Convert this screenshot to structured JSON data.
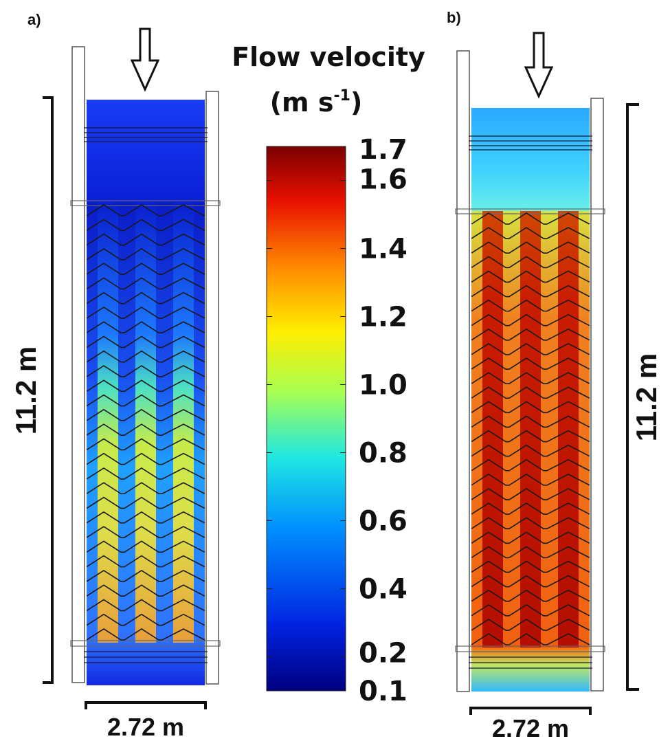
{
  "panels": [
    {
      "id": "a",
      "label": "a)",
      "height_label": "11.2 m",
      "width_label": "2.72 m",
      "upper_velocity": 0.3,
      "channel_velocity": 1.05
    },
    {
      "id": "b",
      "label": "b)",
      "height_label": "11.2 m",
      "width_label": "2.72 m",
      "upper_velocity": 0.62,
      "channel_velocity": 1.62
    }
  ],
  "colorbar": {
    "title_line1": "Flow velocity",
    "title_line2_prefix": "(m s",
    "title_line2_sup": "-1",
    "title_line2_suffix": ")",
    "min": 0.1,
    "max": 1.7,
    "ticks": [
      "1.7",
      "1.6",
      "1.4",
      "1.2",
      "1.0",
      "0.8",
      "0.6",
      "0.4",
      "0.2",
      "0.1"
    ],
    "tick_values": [
      1.7,
      1.6,
      1.4,
      1.2,
      1.0,
      0.8,
      0.6,
      0.4,
      0.2,
      0.1
    ],
    "colors": [
      "#00007f",
      "#0033ff",
      "#00c8ff",
      "#8cff70",
      "#ffe600",
      "#ff7a00",
      "#e01000",
      "#7a0000"
    ]
  }
}
